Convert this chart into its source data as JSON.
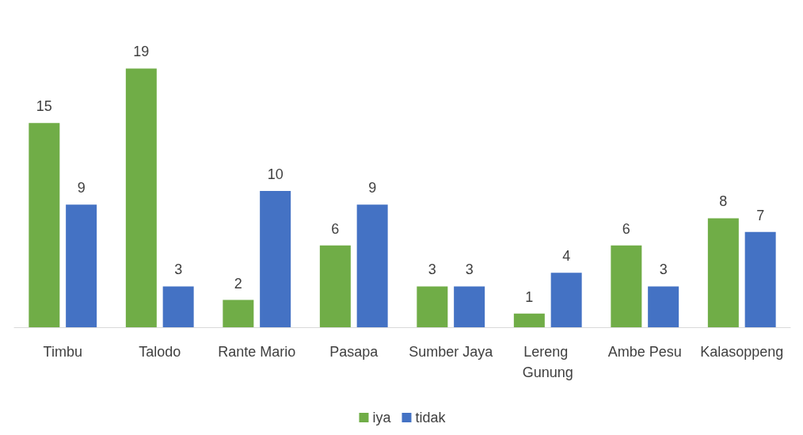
{
  "chart_data": {
    "type": "bar",
    "categories": [
      "Timbu",
      "Talodo",
      "Rante Mario",
      "Pasapa",
      "Sumber Jaya",
      "Lereng Gunung",
      "Ambe Pesu",
      "Kalasoppeng"
    ],
    "series": [
      {
        "name": "iya",
        "color": "#70ad47",
        "values": [
          15,
          19,
          2,
          6,
          3,
          1,
          6,
          8
        ]
      },
      {
        "name": "tidak",
        "color": "#4472c4",
        "values": [
          9,
          3,
          10,
          9,
          3,
          4,
          3,
          7
        ]
      }
    ],
    "data_labels": true,
    "legend": "bottom"
  }
}
